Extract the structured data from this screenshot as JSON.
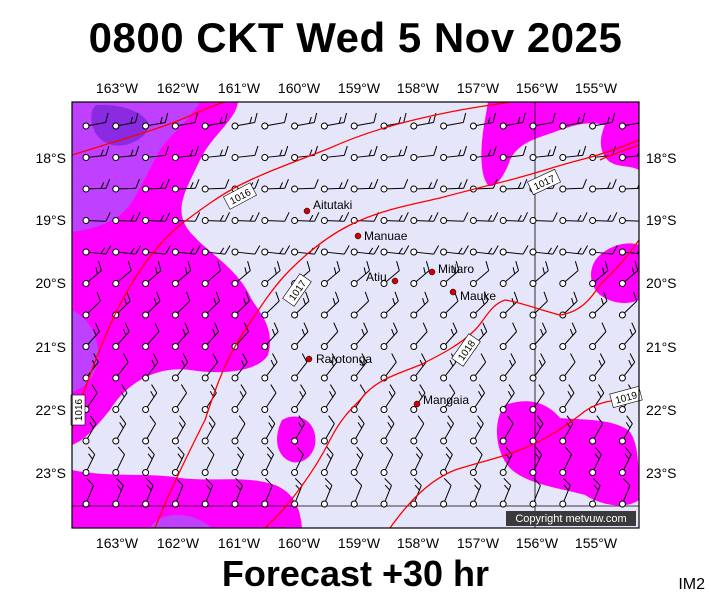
{
  "title": "0800 CKT Wed 5 Nov 2025",
  "footer": "Forecast +30 hr",
  "image_tag": "IM2",
  "copyright": "Copyright metvuw.com",
  "colors": {
    "background_sea": "#e6e6fa",
    "wind_zone_strong": "#ff00ff",
    "wind_zone_stronger": "#c040ff",
    "wind_zone_strongest": "#8a2be2",
    "isobar": "#ff0000",
    "town": "#cc0000",
    "grid": "#000000"
  },
  "axes": {
    "lon_labels": [
      "163°W",
      "162°W",
      "161°W",
      "160°W",
      "159°W",
      "158°W",
      "157°W",
      "156°W",
      "155°W"
    ],
    "lat_labels": [
      "18°S",
      "19°S",
      "20°S",
      "21°S",
      "22°S",
      "23°S"
    ]
  },
  "isobar_labels": [
    "1016",
    "1017",
    "1017",
    "1018",
    "1019",
    "1016"
  ],
  "places": [
    {
      "name": "Aitutaki"
    },
    {
      "name": "Manuae"
    },
    {
      "name": "Mitiaro"
    },
    {
      "name": "Atiu"
    },
    {
      "name": "Mauke"
    },
    {
      "name": "Rarotonga"
    },
    {
      "name": "Mangaia"
    }
  ],
  "wind_barb_icon": "wind-barb-icon"
}
